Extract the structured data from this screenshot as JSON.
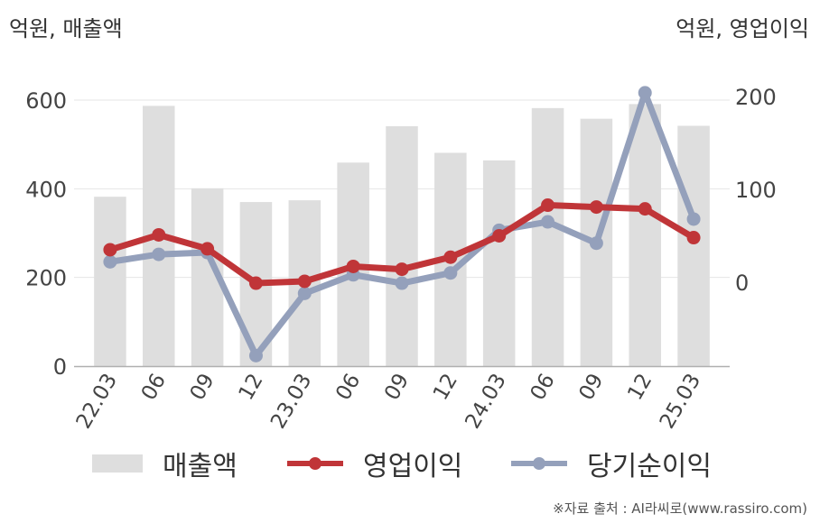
{
  "units": {
    "left": "억원, 매출액",
    "right": "억원, 영업이익"
  },
  "source": "※자료 출처 : AI라씨로(www.rassiro.com)",
  "colors": {
    "revenue": "#dedede",
    "operating_profit": "#c03538",
    "net_income": "#94a0bb",
    "grid": "#e6e6e6",
    "axis": "#b0b0b0"
  },
  "chart_data": {
    "type": "bar",
    "categories": [
      "22.03",
      "06",
      "09",
      "12",
      "23.03",
      "06",
      "09",
      "12",
      "24.03",
      "06",
      "09",
      "12",
      "25.03"
    ],
    "series": [
      {
        "name": "매출액",
        "type": "bar",
        "axis": "left",
        "values": [
          382,
          587,
          401,
          370,
          374,
          459,
          541,
          481,
          464,
          582,
          558,
          591,
          542
        ]
      },
      {
        "name": "영업이익",
        "type": "line",
        "axis": "right",
        "values": [
          35,
          51,
          36,
          -1,
          1,
          17,
          14,
          27,
          50,
          83,
          81,
          79,
          48
        ]
      },
      {
        "name": "당기순이익",
        "type": "line",
        "axis": "right",
        "values": [
          22,
          30,
          32,
          -79,
          -12,
          8,
          -1,
          10,
          56,
          65,
          42,
          204,
          68
        ]
      }
    ],
    "y_left": {
      "ylim": [
        0,
        600
      ],
      "ticks": [
        0,
        200,
        400,
        600
      ]
    },
    "y_right": {
      "ylim": [
        -90,
        200
      ],
      "ticks": [
        0,
        100,
        200
      ]
    },
    "grid": true,
    "legend": "bottom"
  }
}
